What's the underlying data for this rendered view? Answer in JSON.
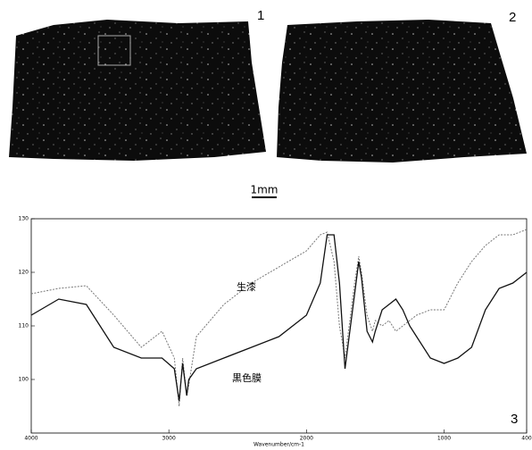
{
  "panels": {
    "label_1": "1",
    "label_2": "2",
    "label_3": "3"
  },
  "scale_bar": "1mm",
  "chart_data": {
    "type": "line",
    "x_label": "Wavenumber/cm-1",
    "x": [
      4000,
      3800,
      3600,
      3400,
      3200,
      3050,
      2960,
      2925,
      2900,
      2870,
      2855,
      2800,
      2600,
      2400,
      2200,
      2000,
      1900,
      1850,
      1800,
      1760,
      1720,
      1700,
      1650,
      1620,
      1600,
      1560,
      1520,
      1500,
      1450,
      1400,
      1350,
      1300,
      1250,
      1200,
      1100,
      1000,
      900,
      800,
      700,
      600,
      500,
      400
    ],
    "series": [
      {
        "name": "生漆",
        "color": "#777777",
        "dashed": true,
        "values": [
          116,
          117,
          117.5,
          112,
          106,
          109,
          104,
          95,
          104,
          97,
          99,
          108,
          114,
          118,
          121,
          124,
          127,
          127.5,
          122,
          110,
          104,
          108,
          118,
          123,
          120,
          112,
          109,
          111,
          110,
          111,
          109,
          110,
          111,
          112,
          113,
          113,
          118,
          122,
          125,
          127,
          127,
          128
        ]
      },
      {
        "name": "黒色膜",
        "color": "#111111",
        "dashed": false,
        "values": [
          112,
          115,
          114,
          106,
          104,
          104,
          102,
          96,
          103,
          97,
          100,
          102,
          104,
          106,
          108,
          112,
          118,
          127,
          127,
          118,
          102,
          106,
          116,
          122,
          119,
          109,
          107,
          109,
          113,
          114,
          115,
          113,
          110,
          108,
          104,
          103,
          104,
          106,
          113,
          117,
          118,
          120
        ]
      }
    ],
    "xlim": [
      4000,
      400
    ],
    "xticks": [
      4000,
      3000,
      2000,
      1000,
      400
    ],
    "ylim": [
      90,
      130
    ],
    "yticks": [
      100,
      110,
      120,
      130
    ]
  }
}
